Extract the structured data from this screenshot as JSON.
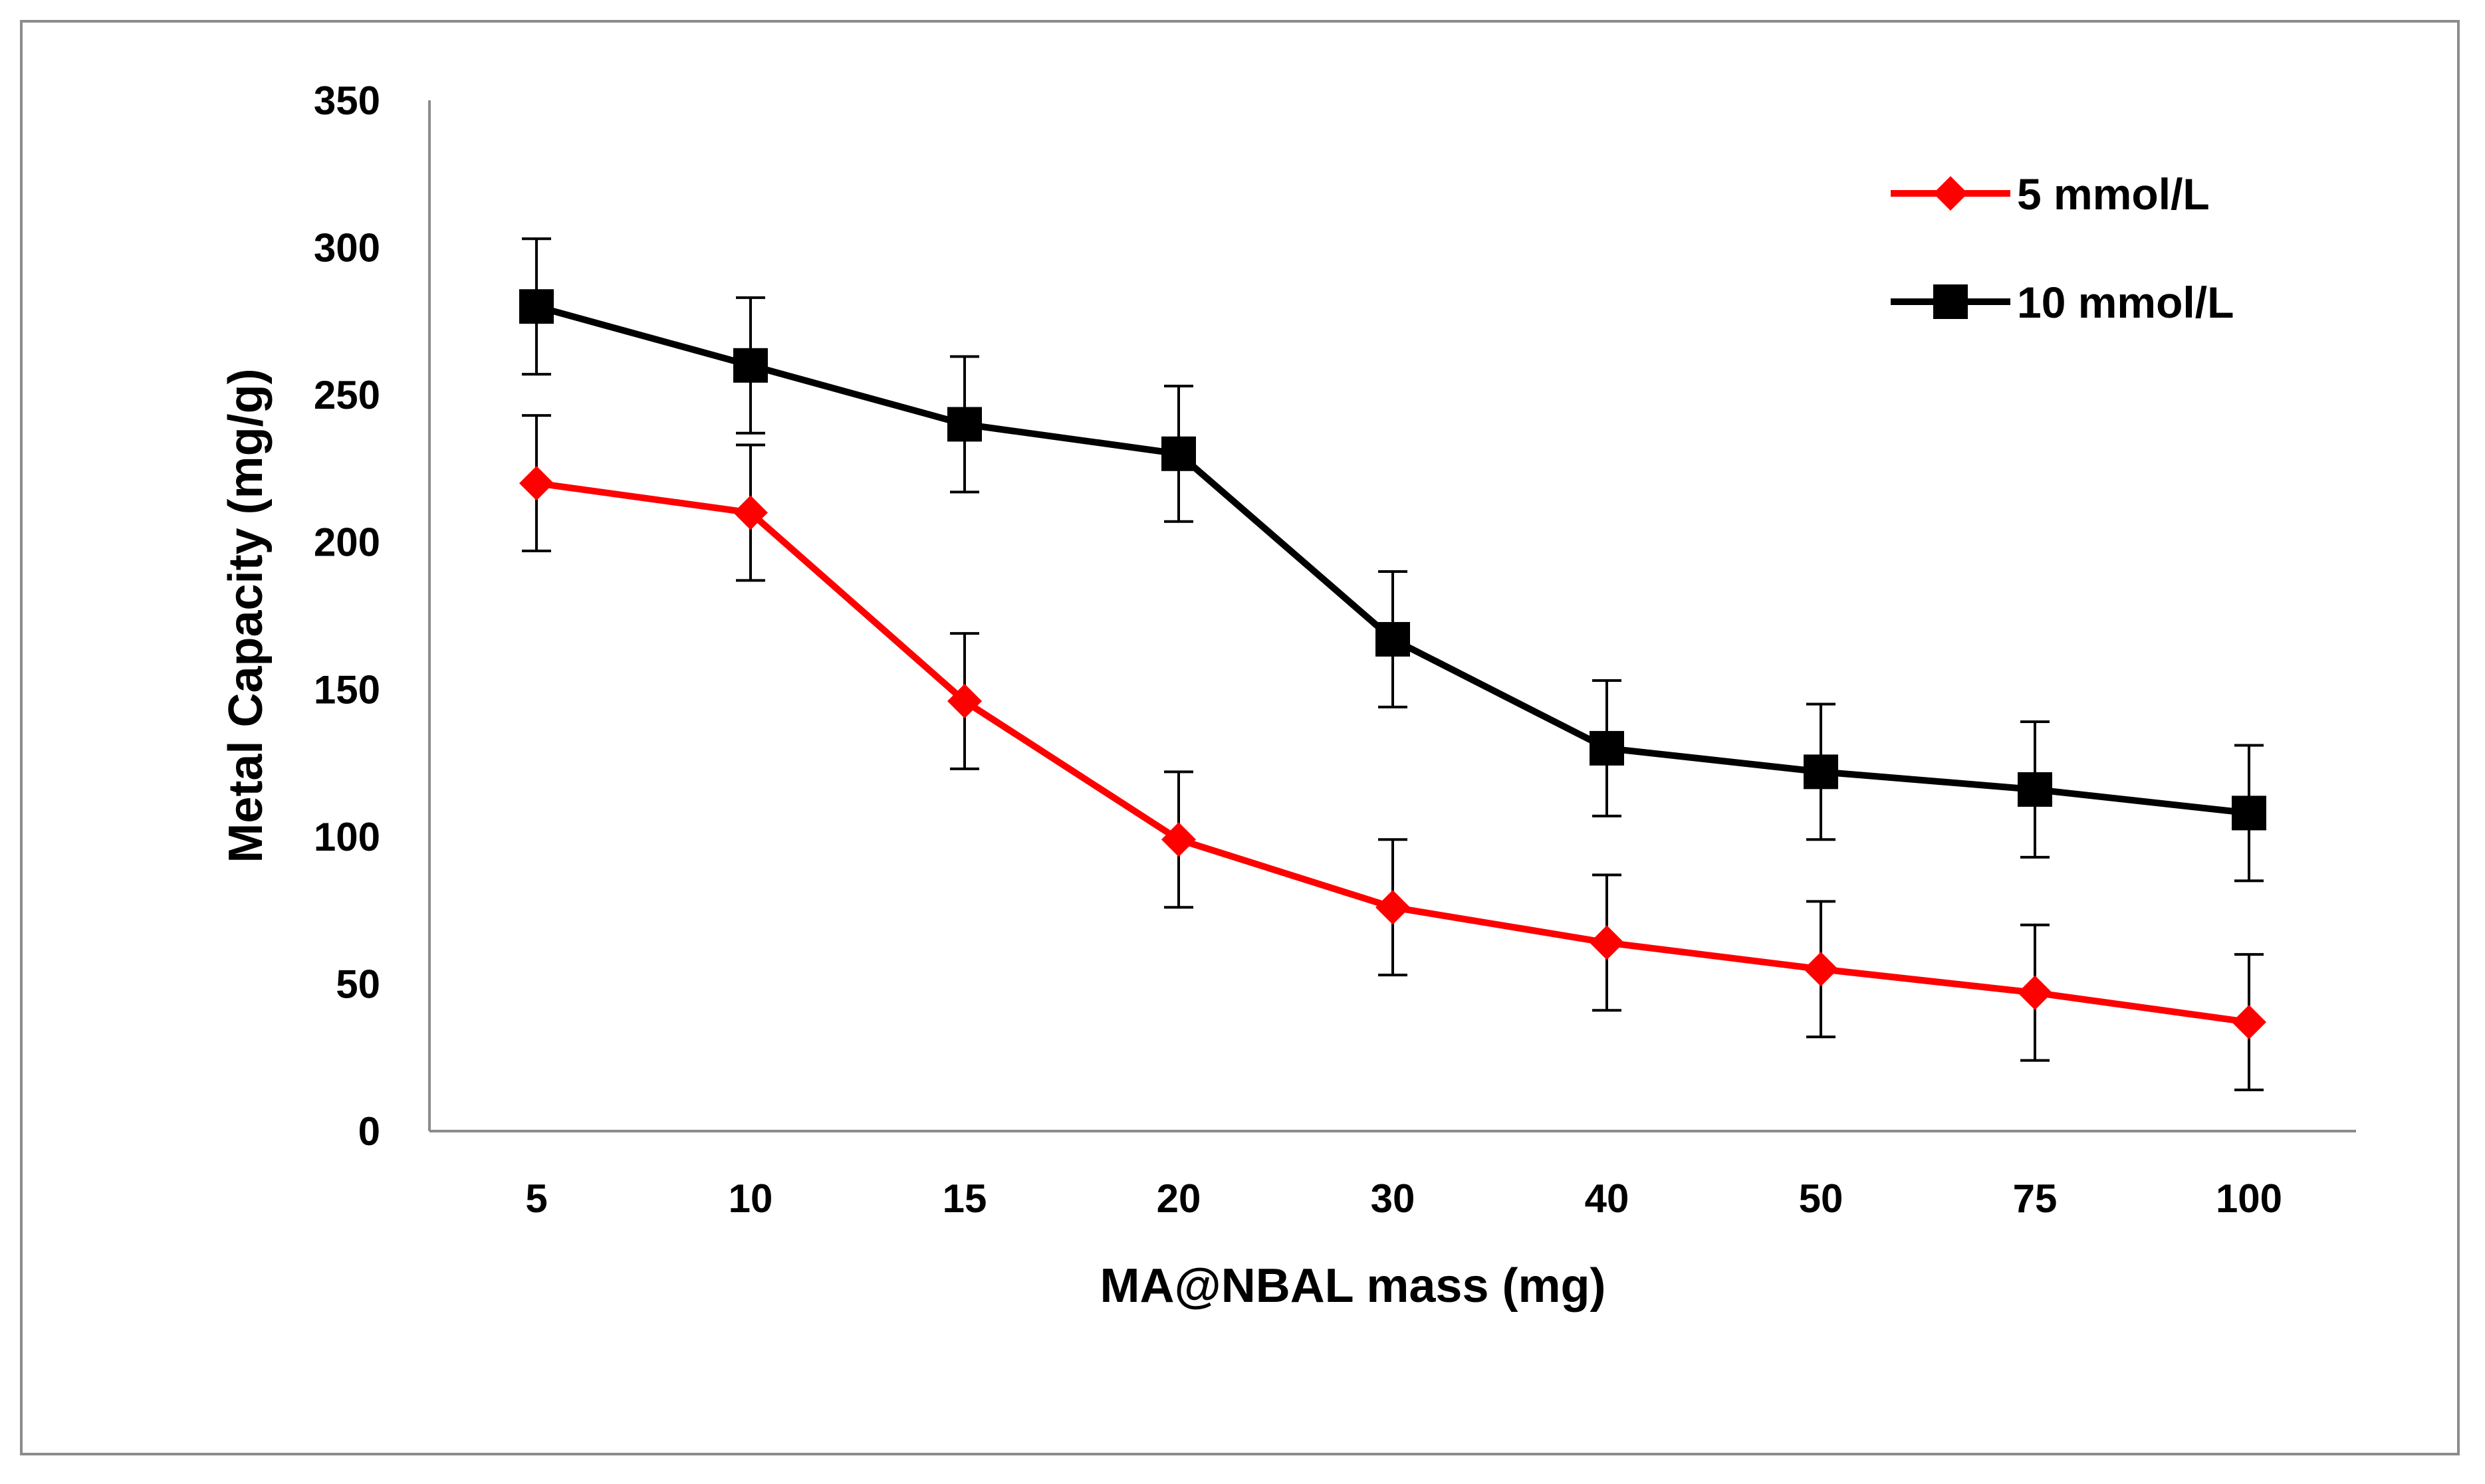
{
  "chart_data": {
    "type": "line",
    "title": "",
    "xlabel": "MA@NBAL mass (mg)",
    "ylabel": "Metal Capacity (mg/g)",
    "categories": [
      "5",
      "10",
      "15",
      "20",
      "30",
      "40",
      "50",
      "75",
      "100"
    ],
    "ylim": [
      0,
      350
    ],
    "yticks": [
      0,
      50,
      100,
      150,
      200,
      250,
      300,
      350
    ],
    "grid": false,
    "legend_position": "top-right",
    "series": [
      {
        "name": "5 mmol/L",
        "color": "#ff0000",
        "marker": "diamond",
        "values": [
          220,
          210,
          146,
          99,
          76,
          64,
          55,
          47,
          37
        ],
        "error": [
          23,
          23,
          23,
          23,
          23,
          23,
          23,
          23,
          23
        ]
      },
      {
        "name": "10 mmol/L",
        "color": "#000000",
        "marker": "square",
        "values": [
          280,
          260,
          240,
          230,
          167,
          130,
          122,
          116,
          108
        ],
        "error": [
          23,
          23,
          23,
          23,
          23,
          23,
          23,
          23,
          23
        ]
      }
    ]
  }
}
